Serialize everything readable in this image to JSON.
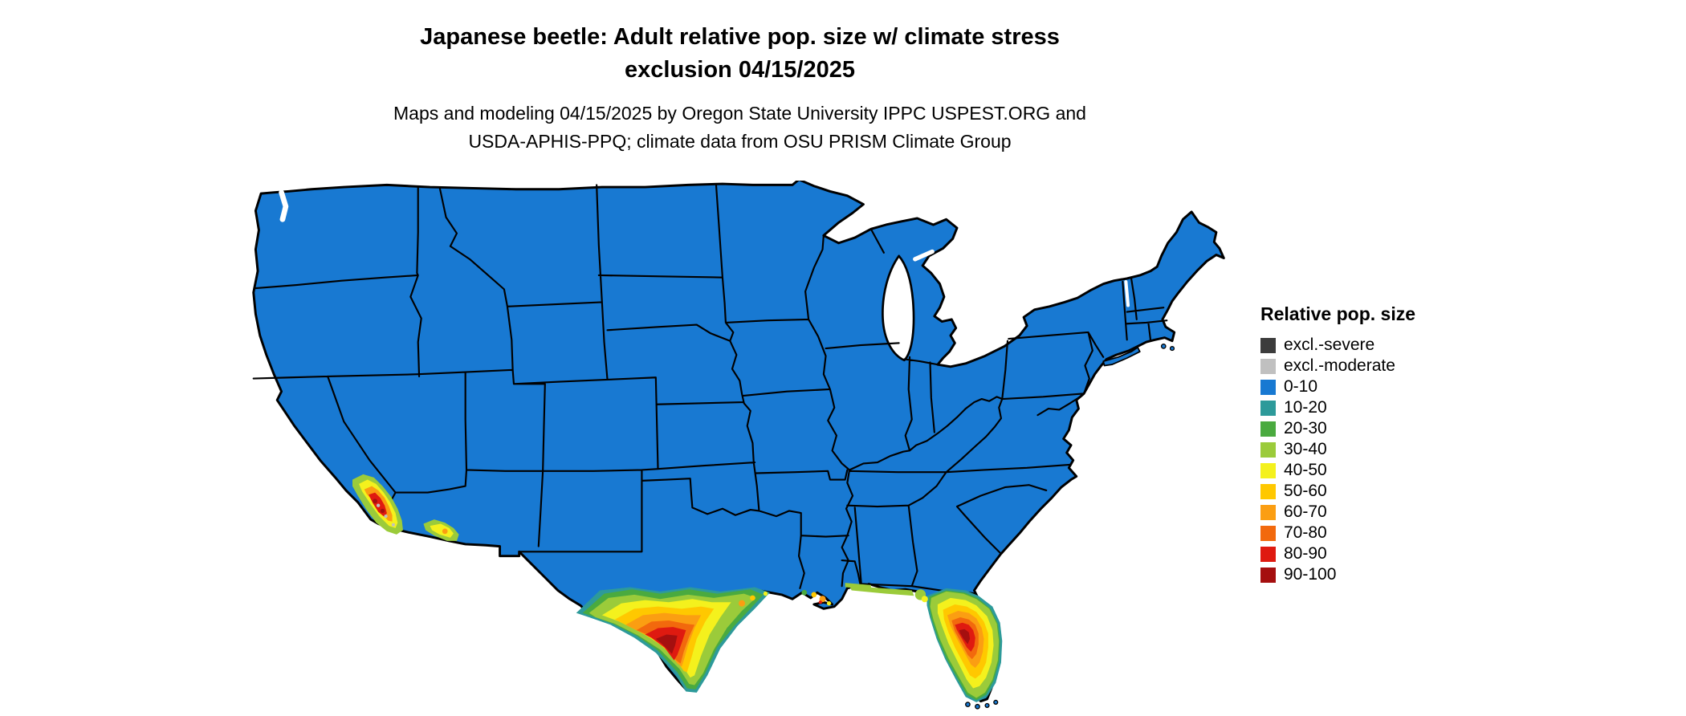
{
  "title": {
    "line1": "Japanese beetle: Adult relative pop. size w/ climate stress",
    "line2": "exclusion 04/15/2025"
  },
  "subtitle": {
    "line1": "Maps and modeling 04/15/2025 by Oregon State University IPPC USPEST.ORG and",
    "line2": "USDA-APHIS-PPQ; climate data from OSU PRISM Climate Group"
  },
  "legend": {
    "title": "Relative pop. size",
    "items": [
      {
        "label": "excl.-severe",
        "color": "#3c3c3c"
      },
      {
        "label": "excl.-moderate",
        "color": "#c0c0c0"
      },
      {
        "label": "0-10",
        "color": "#1879d2"
      },
      {
        "label": "10-20",
        "color": "#2d9a9a"
      },
      {
        "label": "20-30",
        "color": "#4aaa3f"
      },
      {
        "label": "30-40",
        "color": "#9bcb3a"
      },
      {
        "label": "40-50",
        "color": "#f4f11d"
      },
      {
        "label": "50-60",
        "color": "#ffc800"
      },
      {
        "label": "60-70",
        "color": "#fb9e12"
      },
      {
        "label": "70-80",
        "color": "#f2690d"
      },
      {
        "label": "80-90",
        "color": "#df1a10"
      },
      {
        "label": "90-100",
        "color": "#a50f0f"
      }
    ]
  },
  "map": {
    "outline_color": "#000000"
  }
}
